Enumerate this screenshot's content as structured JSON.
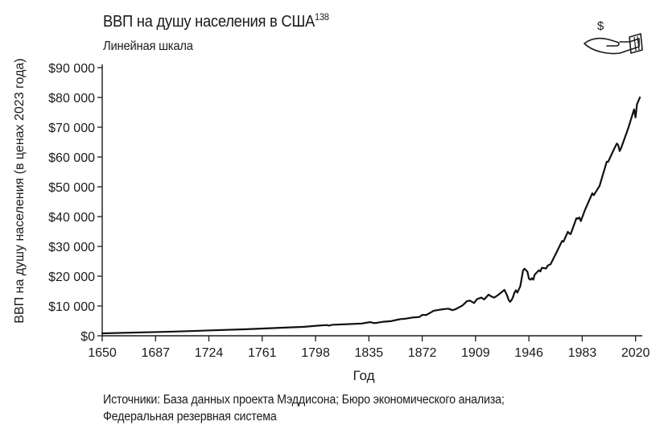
{
  "header": {
    "title": "ВВП на душу населения в США",
    "title_note": "138",
    "subtitle": "Линейная шкала"
  },
  "footer": {
    "sources_line1": "Источники: База данных проекта Мэддисона; Бюро экономического анализа;",
    "sources_line2": "Федеральная резервная система"
  },
  "icon": {
    "name": "hand-holding-dollar-icon",
    "glyph": "$"
  },
  "chart_data": {
    "type": "line",
    "title": "ВВП на душу населения в США",
    "subtitle": "Линейная шкала",
    "xlabel": "Год",
    "ylabel": "ВВП на душу населения (в ценах 2023 года)",
    "xlim": [
      1650,
      2023
    ],
    "ylim": [
      0,
      90000
    ],
    "x_ticks": [
      1650,
      1687,
      1724,
      1761,
      1798,
      1835,
      1872,
      1909,
      1946,
      1983,
      2020
    ],
    "y_ticks": [
      0,
      10000,
      20000,
      30000,
      40000,
      50000,
      60000,
      70000,
      80000,
      90000
    ],
    "y_tick_labels": [
      "$0",
      "$10 000",
      "$20 000",
      "$30 000",
      "$40 000",
      "$50 000",
      "$60 000",
      "$70 000",
      "$80 000",
      "$90 000"
    ],
    "grid": false,
    "legend": "none",
    "line_color": "#111111",
    "series": [
      {
        "x": [
          1650,
          1700,
          1750,
          1790,
          1800,
          1806,
          1807,
          1810,
          1820,
          1830,
          1836,
          1838,
          1840,
          1845,
          1850,
          1855,
          1857,
          1860,
          1865,
          1870,
          1872,
          1875,
          1880,
          1885,
          1890,
          1893,
          1895,
          1900,
          1903,
          1905,
          1908,
          1910,
          1913,
          1915,
          1918,
          1920,
          1922,
          1925,
          1929,
          1930,
          1931,
          1932,
          1933,
          1934,
          1935,
          1936,
          1937,
          1938,
          1939,
          1940,
          1941,
          1942,
          1943,
          1944,
          1945,
          1946,
          1947,
          1948,
          1949,
          1950,
          1953,
          1954,
          1955,
          1958,
          1959,
          1960,
          1961,
          1965,
          1969,
          1970,
          1973,
          1974,
          1975,
          1979,
          1980,
          1981,
          1982,
          1985,
          1990,
          1991,
          1995,
          2000,
          2001,
          2005,
          2007,
          2008,
          2009,
          2010,
          2015,
          2019,
          2020,
          2021,
          2023
        ],
        "y": [
          800,
          1400,
          2200,
          3000,
          3400,
          3600,
          3400,
          3700,
          3900,
          4100,
          4600,
          4300,
          4300,
          4700,
          4900,
          5400,
          5600,
          5700,
          6100,
          6300,
          7000,
          7000,
          8400,
          8800,
          9100,
          8600,
          8900,
          10200,
          11600,
          11800,
          11000,
          12300,
          12800,
          12200,
          13800,
          13200,
          12800,
          13800,
          15400,
          14500,
          13400,
          12000,
          11400,
          12000,
          13000,
          14500,
          15300,
          14500,
          15600,
          16600,
          19200,
          22000,
          22500,
          22000,
          21500,
          19200,
          18800,
          19300,
          18800,
          20500,
          22000,
          21600,
          22800,
          22600,
          23500,
          23800,
          24000,
          27800,
          31800,
          31600,
          34900,
          34400,
          34100,
          39500,
          39300,
          39700,
          38500,
          42300,
          47800,
          47200,
          50300,
          58400,
          58400,
          62600,
          64500,
          64000,
          62000,
          63000,
          69800,
          76000,
          73300,
          77700,
          80000
        ]
      }
    ]
  }
}
